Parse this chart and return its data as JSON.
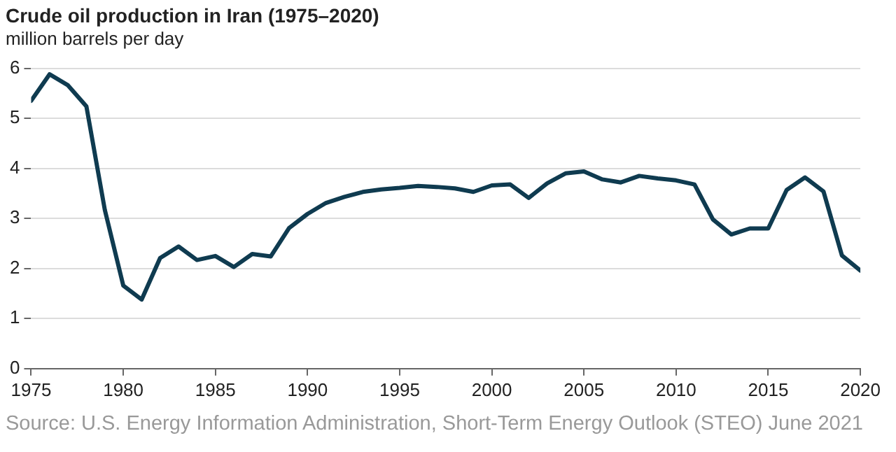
{
  "chart_data": {
    "type": "line",
    "title": "Crude oil production in Iran (1975–2020)",
    "ylabel": "million barrels per day",
    "x": [
      1975,
      1976,
      1977,
      1978,
      1979,
      1980,
      1981,
      1982,
      1983,
      1984,
      1985,
      1986,
      1987,
      1988,
      1989,
      1990,
      1991,
      1992,
      1993,
      1994,
      1995,
      1996,
      1997,
      1998,
      1999,
      2000,
      2001,
      2002,
      2003,
      2004,
      2005,
      2006,
      2007,
      2008,
      2009,
      2010,
      2011,
      2012,
      2013,
      2014,
      2015,
      2016,
      2017,
      2018,
      2019,
      2020
    ],
    "series": [
      {
        "color": "#0f3b50",
        "values": [
          5.35,
          5.88,
          5.66,
          5.24,
          3.17,
          1.66,
          1.38,
          2.21,
          2.44,
          2.17,
          2.25,
          2.03,
          2.29,
          2.24,
          2.81,
          3.09,
          3.31,
          3.43,
          3.53,
          3.58,
          3.61,
          3.65,
          3.63,
          3.6,
          3.53,
          3.66,
          3.68,
          3.41,
          3.7,
          3.9,
          3.94,
          3.78,
          3.72,
          3.85,
          3.8,
          3.76,
          3.68,
          2.98,
          2.68,
          2.8,
          2.8,
          3.57,
          3.82,
          3.54,
          2.26,
          1.96
        ]
      }
    ],
    "xlim": [
      1975,
      2020
    ],
    "xticks": [
      1975,
      1980,
      1985,
      1990,
      1995,
      2000,
      2005,
      2010,
      2015,
      2020
    ],
    "ylim": [
      0,
      6
    ],
    "yticks": [
      0,
      1,
      2,
      3,
      4,
      5,
      6
    ],
    "grid": "y",
    "legend": false,
    "marker": "none",
    "line_style": "solid",
    "annotations": [
      "Source: U.S. Energy Information Administration, Short-Term Energy Outlook (STEO) June 2021"
    ]
  }
}
